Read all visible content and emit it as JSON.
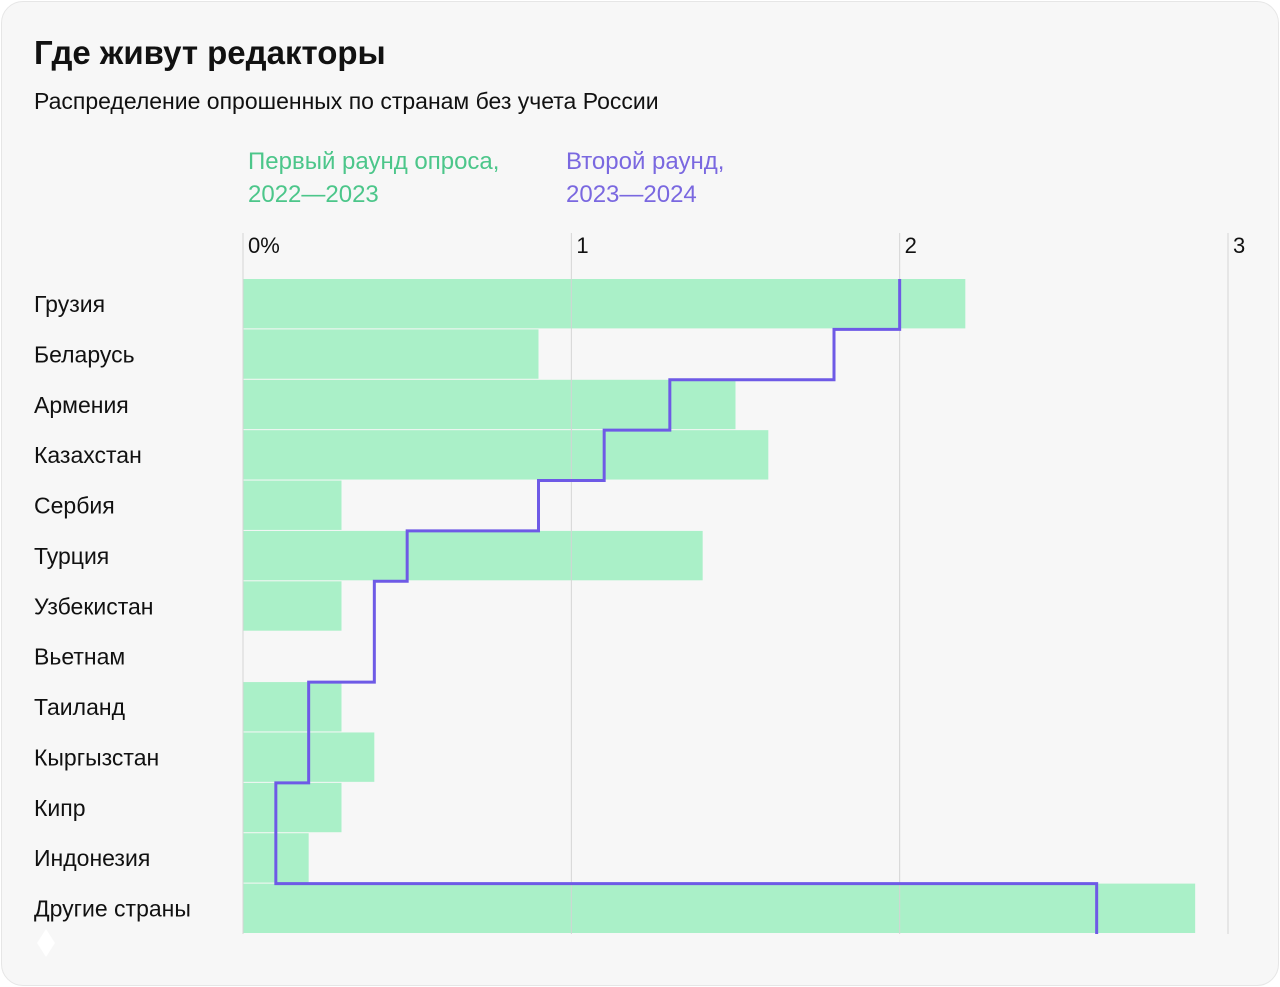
{
  "chart_data": {
    "type": "bar",
    "title": "Где живут редакторы",
    "subtitle": "Распределение опрошенных по странам без учета России",
    "categories": [
      "Грузия",
      "Беларусь",
      "Армения",
      "Казахстан",
      "Сербия",
      "Турция",
      "Узбекистан",
      "Вьетнам",
      "Таиланд",
      "Кыргызстан",
      "Кипр",
      "Индонезия",
      "Другие страны"
    ],
    "series": [
      {
        "name": "Первый раунд опроса, 2022—2023",
        "name_lines": [
          "Первый раунд опроса,",
          "2022—2023"
        ],
        "style": "bar",
        "color": "#aaf0c8",
        "legend_color": "#4cc68a",
        "values": [
          2.2,
          0.9,
          1.5,
          1.6,
          0.3,
          1.4,
          0.3,
          0,
          0.3,
          0.4,
          0.3,
          0.2,
          2.9
        ]
      },
      {
        "name": "Второй раунд, 2023—2024",
        "name_lines": [
          "Второй раунд,",
          "2023—2024"
        ],
        "style": "step-line",
        "color": "#6e5ae6",
        "legend_color": "#7a68e0",
        "values": [
          2.0,
          1.8,
          1.3,
          1.1,
          0.9,
          0.5,
          0.4,
          0.4,
          0.2,
          0.2,
          0.1,
          0.1,
          2.6
        ]
      }
    ],
    "x_ticks": [
      "0%",
      "1",
      "2",
      "3"
    ],
    "xlim": [
      0,
      3
    ],
    "orientation": "horizontal",
    "grid": true,
    "legend_position": "top"
  }
}
